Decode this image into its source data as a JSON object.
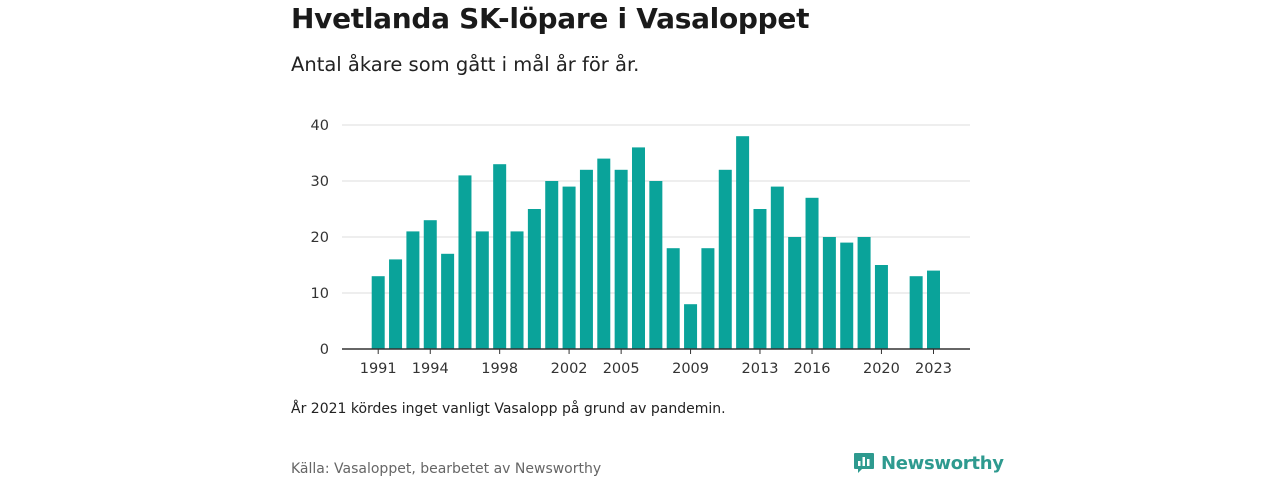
{
  "title": "Hvetlanda SK-löpare i Vasaloppet",
  "subtitle": "Antal åkare som gått i mål år för år.",
  "note": "År 2021 kördes inget vanligt Vasalopp på grund av pandemin.",
  "source": "Källa: Vasaloppet, bearbetet av Newsworthy",
  "brand": {
    "name": "Newsworthy",
    "color": "#2e9a8f"
  },
  "chart_data": {
    "type": "bar",
    "x": [
      1991,
      1992,
      1993,
      1994,
      1995,
      1996,
      1997,
      1998,
      1999,
      2000,
      2001,
      2002,
      2003,
      2004,
      2005,
      2006,
      2007,
      2008,
      2009,
      2010,
      2011,
      2012,
      2013,
      2014,
      2015,
      2016,
      2017,
      2018,
      2019,
      2020,
      2021,
      2022,
      2023
    ],
    "values": [
      13,
      16,
      21,
      23,
      17,
      31,
      21,
      33,
      21,
      25,
      30,
      29,
      32,
      34,
      32,
      36,
      30,
      18,
      8,
      18,
      32,
      38,
      25,
      29,
      20,
      27,
      20,
      19,
      20,
      15,
      null,
      13,
      14
    ],
    "x_tick_labels": [
      "1991",
      "1994",
      "1998",
      "2002",
      "2005",
      "2009",
      "2013",
      "2016",
      "2020",
      "2023"
    ],
    "y_ticks": [
      "0",
      "10",
      "20",
      "30",
      "40"
    ],
    "ylim": [
      0,
      40
    ],
    "grid": true,
    "bar_color": "#0aa39a"
  }
}
